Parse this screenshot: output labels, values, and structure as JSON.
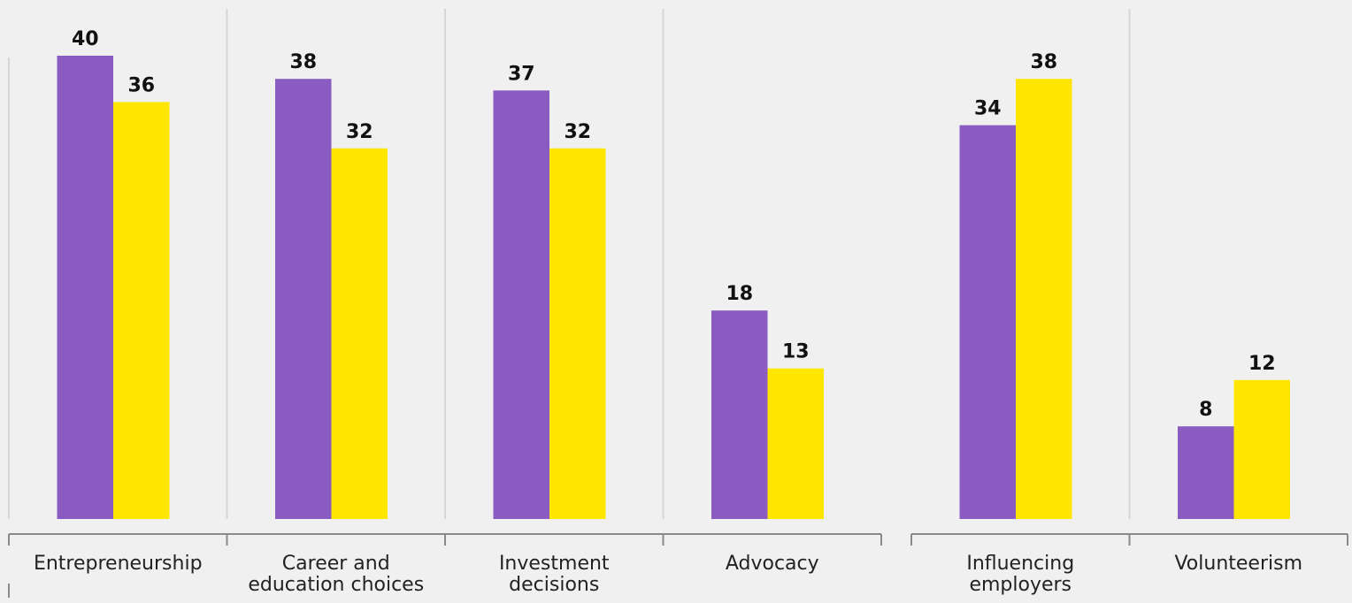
{
  "chart_data": {
    "type": "bar",
    "categories": [
      [
        "Entrepreneurship"
      ],
      [
        "Career and",
        "education choices"
      ],
      [
        "Investment",
        "decisions"
      ],
      [
        "Advocacy"
      ],
      [
        "Influencing",
        "employers"
      ],
      [
        "Volunteerism"
      ]
    ],
    "groups": [
      [
        0,
        1,
        2,
        3
      ],
      [
        4,
        5
      ]
    ],
    "series": [
      {
        "values": [
          40,
          38,
          37,
          18,
          34,
          8
        ],
        "color": "#8a5cc2"
      },
      {
        "values": [
          36,
          32,
          32,
          13,
          38,
          12
        ],
        "color": "#ffe600"
      }
    ],
    "ylim": [
      0,
      40
    ],
    "grid": "vertical separators between categories",
    "legend": "none",
    "title": "",
    "xlabel": "",
    "ylabel": ""
  }
}
